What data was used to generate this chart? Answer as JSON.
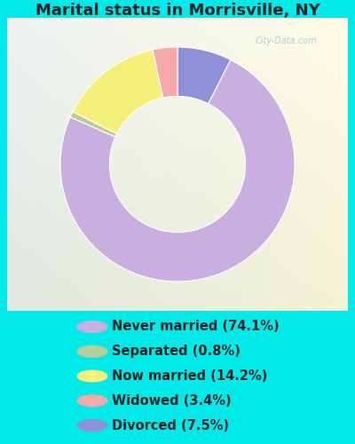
{
  "title": "Marital status in Morrisville, NY",
  "slices": [
    74.1,
    0.8,
    14.2,
    3.4,
    7.5
  ],
  "labels": [
    "Never married (74.1%)",
    "Separated (0.8%)",
    "Now married (14.2%)",
    "Widowed (3.4%)",
    "Divorced (7.5%)"
  ],
  "colors": [
    "#c9aee0",
    "#b8cc96",
    "#f5f07a",
    "#f5a8a8",
    "#9090d8"
  ],
  "bg_color": "#00eaea",
  "chart_bg": "#d4ead4",
  "watermark": "City-Data.com",
  "title_fontsize": 13,
  "legend_fontsize": 10.5,
  "ordered_slices": [
    7.5,
    74.1,
    0.8,
    14.2,
    3.4
  ],
  "ordered_color_indices": [
    4,
    0,
    1,
    2,
    3
  ]
}
